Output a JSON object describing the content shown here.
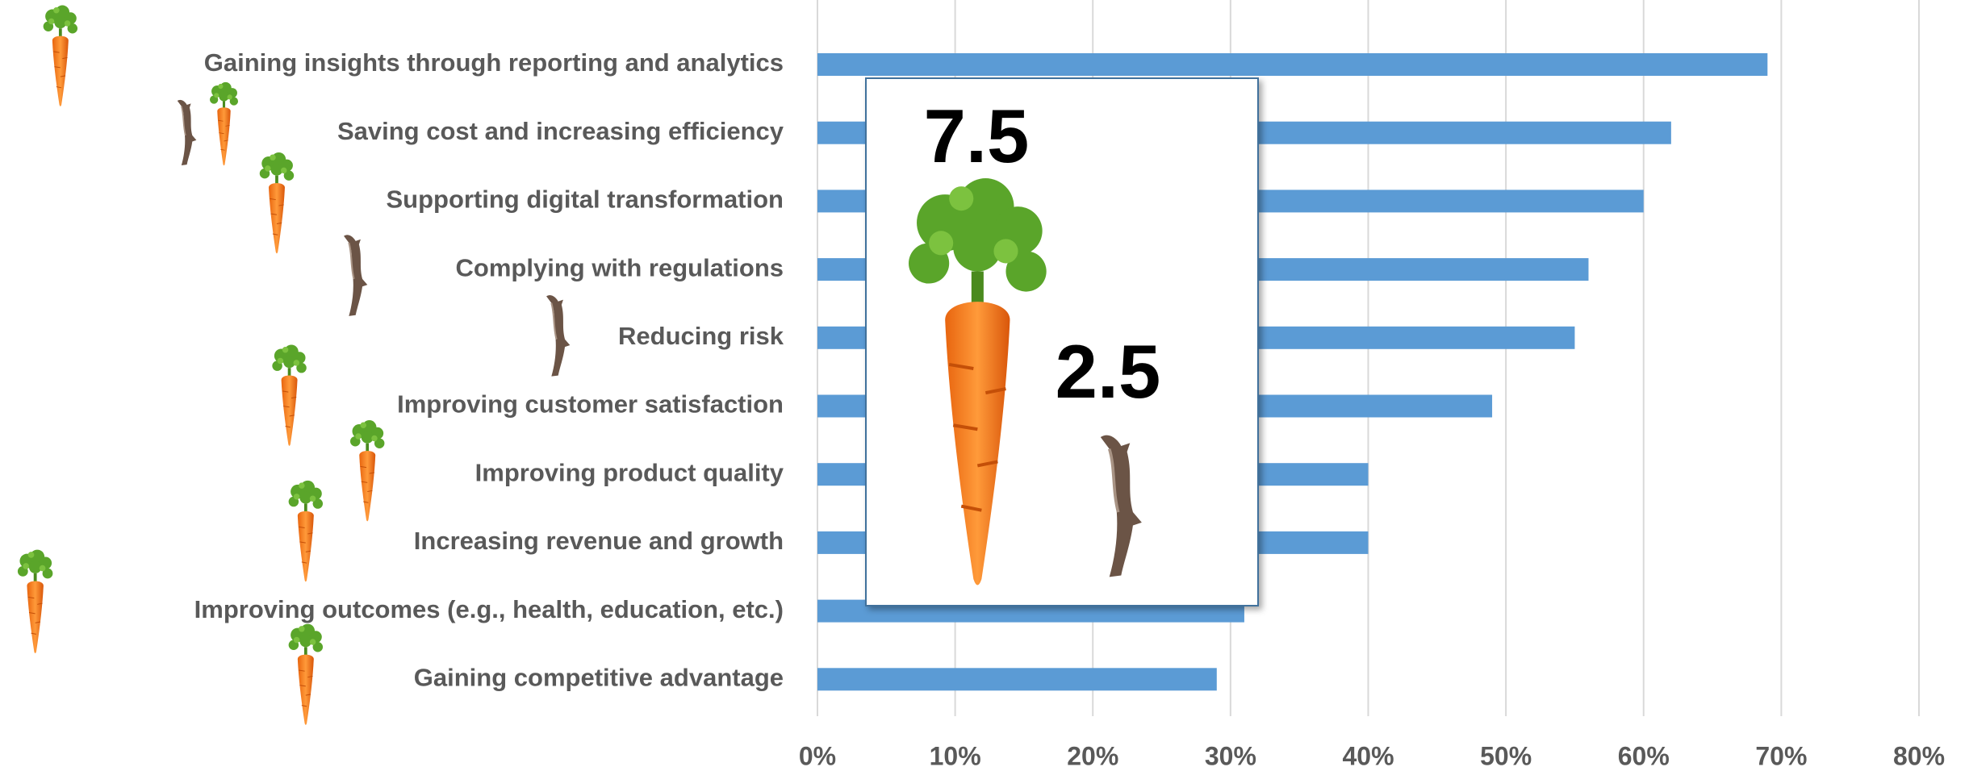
{
  "chart_data": {
    "type": "bar",
    "orientation": "horizontal",
    "categories": [
      "Gaining insights through reporting and analytics",
      "Saving cost and increasing efficiency",
      "Supporting digital transformation",
      "Complying with regulations",
      "Reducing risk",
      "Improving customer satisfaction",
      "Improving product quality",
      "Increasing revenue and growth",
      "Improving outcomes (e.g., health, education, etc.)",
      "Gaining competitive advantage"
    ],
    "values": [
      69,
      62,
      60,
      56,
      55,
      49,
      40,
      40,
      31,
      29
    ],
    "color": "#5b9bd5",
    "xlim": [
      0,
      80
    ],
    "xticks": [
      {
        "value": 0,
        "label": "0%"
      },
      {
        "value": 10,
        "label": "10%"
      },
      {
        "value": 20,
        "label": "20%"
      },
      {
        "value": 30,
        "label": "30%"
      },
      {
        "value": 40,
        "label": "40%"
      },
      {
        "value": 50,
        "label": "50%"
      },
      {
        "value": 60,
        "label": "60%"
      },
      {
        "value": 70,
        "label": "70%"
      },
      {
        "value": 80,
        "label": "80%"
      }
    ],
    "grid": true,
    "annotations": [
      "7.5",
      "2.5"
    ]
  }
}
